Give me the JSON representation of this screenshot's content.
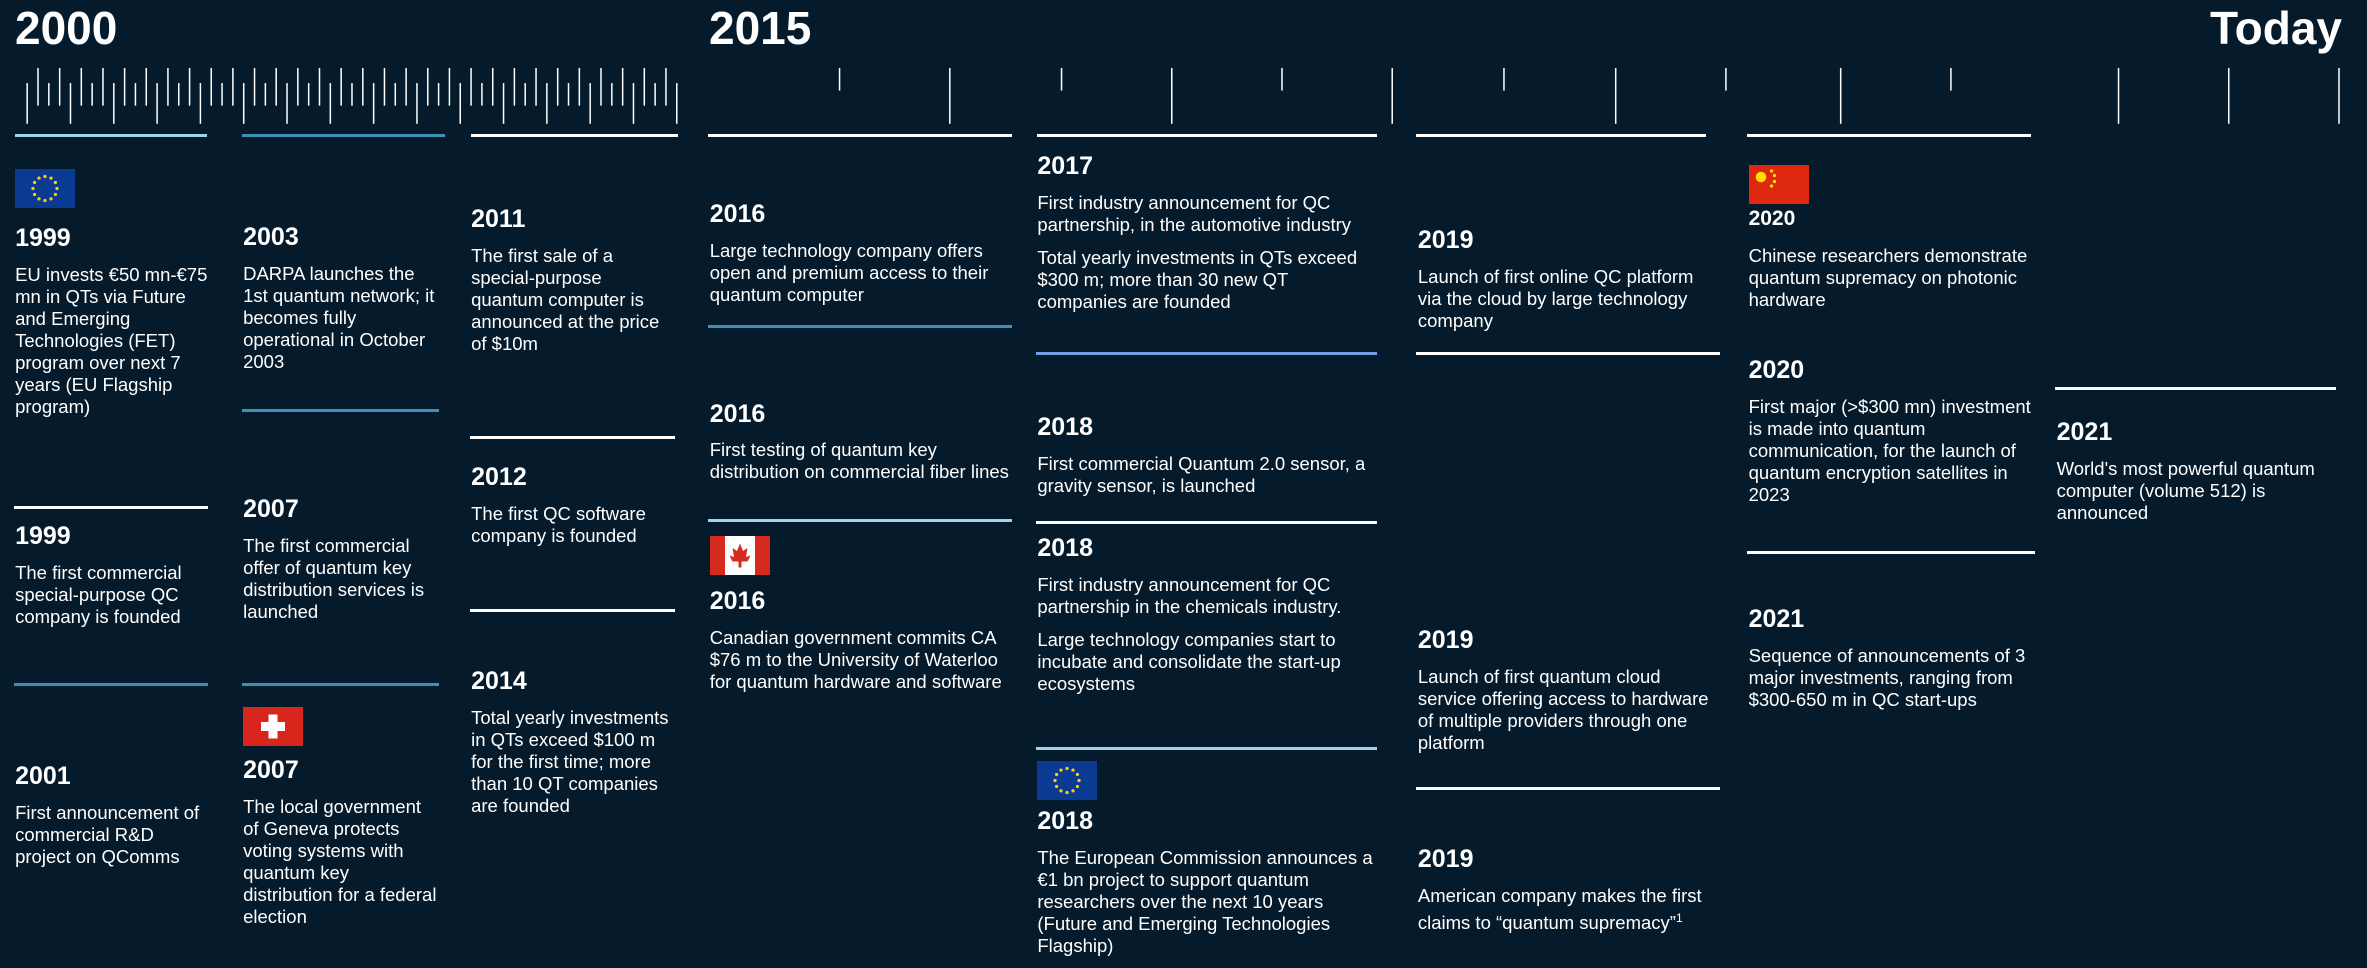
{
  "header": {
    "start": "2000",
    "middle": "2015",
    "end": "Today"
  },
  "columns": [
    {
      "items": [
        {
          "year": "1999",
          "text": [
            "EU invests €50 mn-€75 mn in QTs via Future and Emerging Technologies (FET) program over next 7 years (EU Flagship program)"
          ]
        },
        {
          "year": "1999",
          "text": [
            "The first commercial special-purpose QC company is founded"
          ]
        },
        {
          "year": "2001",
          "text": [
            "First announcement of commercial R&D project on QComms"
          ]
        }
      ]
    },
    {
      "items": [
        {
          "year": "2003",
          "text": [
            "DARPA launches the 1st quantum network; it becomes fully operational in October 2003"
          ]
        },
        {
          "year": "2007",
          "text": [
            "The first commercial offer of quantum key distribution services is launched"
          ]
        },
        {
          "year": "2007",
          "text": [
            "The local government of Geneva protects voting systems with quantum key distribution for a federal election"
          ]
        }
      ]
    },
    {
      "items": [
        {
          "year": "2011",
          "text": [
            "The first sale of a special-purpose quantum computer is announced at the price of $10m"
          ]
        },
        {
          "year": "2012",
          "text": [
            "The first QC software company is founded"
          ]
        },
        {
          "year": "2014",
          "text": [
            "Total yearly investments in QTs exceed $100 m for the first time; more than 10 QT companies are founded"
          ]
        }
      ]
    },
    {
      "items": [
        {
          "year": "2016",
          "text": [
            "Large technology company offers open and premium access to their quantum computer"
          ]
        },
        {
          "year": "2016",
          "text": [
            "First testing of quantum key distribution on commercial fiber lines"
          ]
        },
        {
          "year": "2016",
          "text": [
            "Canadian government commits CA $76 m to the University of Waterloo for quantum hardware and software"
          ]
        }
      ]
    },
    {
      "items": [
        {
          "year": "2017",
          "text": [
            "First industry announcement for QC partnership, in the automotive industry",
            "Total yearly investments in QTs exceed $300 m; more than 30 new QT companies are founded"
          ]
        },
        {
          "year": "2018",
          "text": [
            "First commercial Quantum 2.0 sensor, a gravity sensor, is launched"
          ]
        },
        {
          "year": "2018",
          "text": [
            "First industry announcement for QC partnership in the chemicals industry.",
            "Large technology companies start to incubate and consolidate the start-up ecosystems"
          ]
        },
        {
          "year": "2018",
          "text": [
            "The European Commission announces a €1 bn project to support quantum researchers over the next 10 years (Future and Emerging Technologies Flagship)"
          ]
        }
      ]
    },
    {
      "items": [
        {
          "year": "2019",
          "text": [
            "Launch of first online QC platform via the cloud by large technology company"
          ]
        },
        {
          "year": "2019",
          "text": [
            "Launch of first quantum cloud service offering access to hardware of multiple providers through one platform"
          ]
        },
        {
          "year": "2019",
          "text": [
            "American company makes the first claims to “quantum supremacy”"
          ],
          "footnote": "1"
        }
      ]
    },
    {
      "items": [
        {
          "year": "2020",
          "text": [
            "Chinese researchers demonstrate quantum supremacy on photonic hardware"
          ]
        },
        {
          "year": "2020",
          "text": [
            "First major (>$300 mn) investment is made into quantum communication, for the launch of quantum encryption satellites in 2023"
          ]
        },
        {
          "year": "2021",
          "text": [
            "Sequence of announcements of 3 major investments, ranging from $300-650 m in QC start-ups"
          ]
        }
      ]
    },
    {
      "items": [
        {
          "year": "2021",
          "text": [
            "World's most powerful quantum computer (volume 512) is announced"
          ]
        }
      ]
    }
  ]
}
